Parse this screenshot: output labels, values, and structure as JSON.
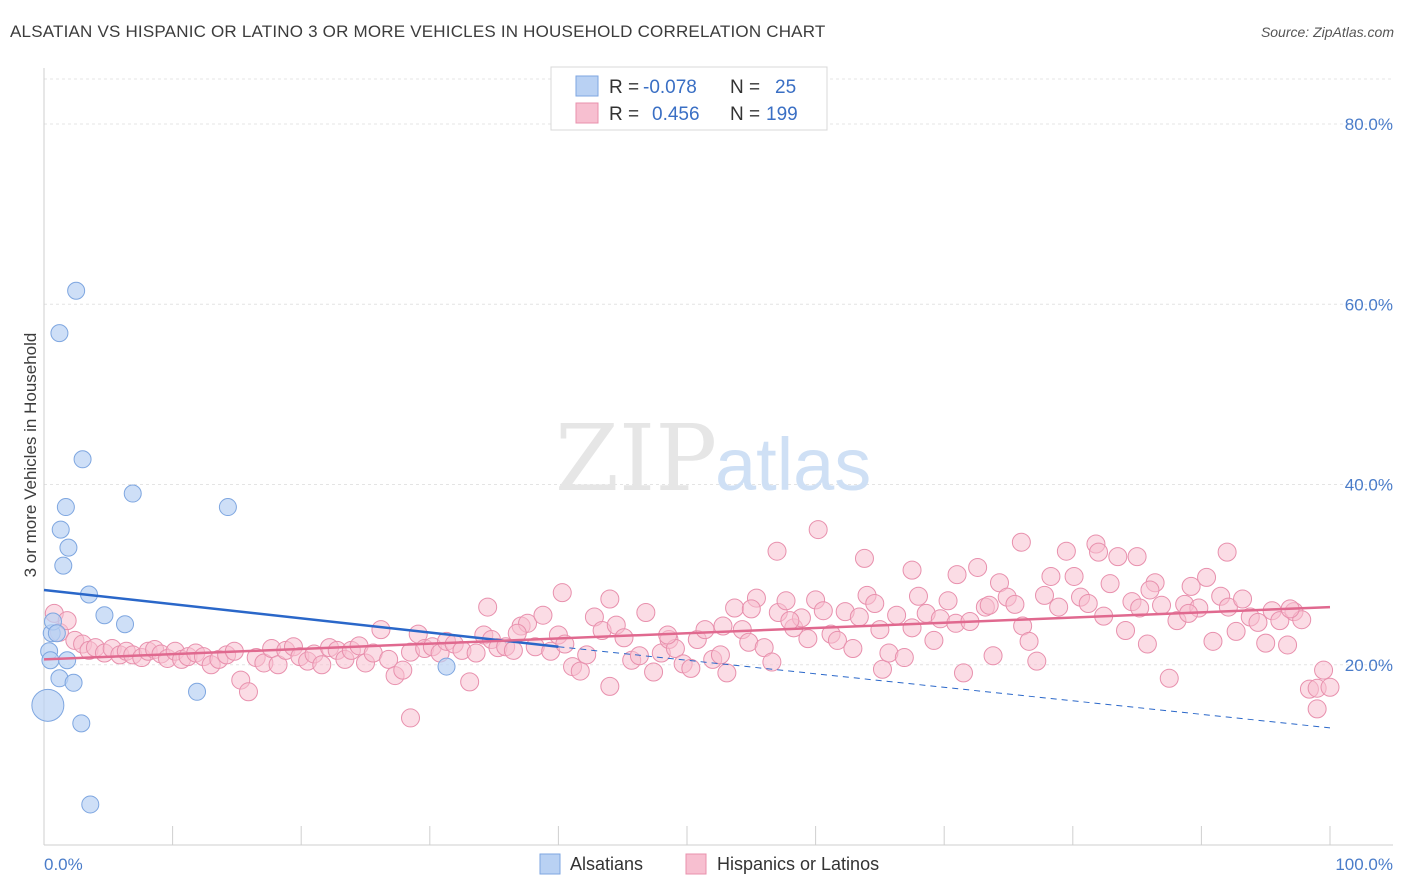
{
  "title": "ALSATIAN VS HISPANIC OR LATINO 3 OR MORE VEHICLES IN HOUSEHOLD CORRELATION CHART",
  "source": "Source: ZipAtlas.com",
  "watermark": {
    "zip": "ZIP",
    "atlas": "atlas"
  },
  "colors": {
    "blue_fill": "#b9d1f3",
    "blue_stroke": "#7ea6e0",
    "blue_line": "#2a67c9",
    "pink_fill": "#f7bfd0",
    "pink_stroke": "#e890ad",
    "pink_line": "#e0698f",
    "axis_text": "#4a7cc9"
  },
  "legend": {
    "r_label": "R =",
    "n_label": "N =",
    "rows": [
      {
        "r": "-0.078",
        "n": "25"
      },
      {
        "r": "0.456",
        "n": "199"
      }
    ]
  },
  "bottom_legend": [
    "Alsatians",
    "Hispanics or Latinos"
  ],
  "chart_data": {
    "type": "scatter",
    "title": "ALSATIAN VS HISPANIC OR LATINO 3 OR MORE VEHICLES IN HOUSEHOLD CORRELATION CHART",
    "xlabel": "",
    "ylabel": "3 or more Vehicles in Household",
    "xlim": [
      0,
      100
    ],
    "ylim": [
      0,
      85
    ],
    "x_tick_labels": [
      "0.0%",
      "100.0%"
    ],
    "y_ticks": [
      20,
      40,
      60,
      80
    ],
    "y_tick_labels": [
      "20.0%",
      "40.0%",
      "60.0%",
      "80.0%"
    ],
    "grid": true,
    "series": [
      {
        "name": "Alsatians",
        "points": [
          [
            0.3,
            15.5
          ],
          [
            0.4,
            21.5
          ],
          [
            0.5,
            20.5
          ],
          [
            0.6,
            23.5
          ],
          [
            0.7,
            24.8
          ],
          [
            1.2,
            56.8
          ],
          [
            1.3,
            35.0
          ],
          [
            1.5,
            31.0
          ],
          [
            1.7,
            37.5
          ],
          [
            1.9,
            33.0
          ],
          [
            1.8,
            20.5
          ],
          [
            1.2,
            18.5
          ],
          [
            2.3,
            18.0
          ],
          [
            2.5,
            61.5
          ],
          [
            2.9,
            13.5
          ],
          [
            3.0,
            42.8
          ],
          [
            3.5,
            27.8
          ],
          [
            3.6,
            4.5
          ],
          [
            4.7,
            25.5
          ],
          [
            6.3,
            24.5
          ],
          [
            6.9,
            39.0
          ],
          [
            11.9,
            17.0
          ],
          [
            14.3,
            37.5
          ],
          [
            31.3,
            19.8
          ],
          [
            1.0,
            23.5
          ]
        ],
        "trend": {
          "x0": 0,
          "y0": 28.3,
          "x1": 40,
          "y1": 22.0,
          "dashed_to_x": 100,
          "dashed_to_y": 13.0
        }
      },
      {
        "name": "Hispanics or Latinos",
        "points": [
          [
            0.8,
            25.7
          ],
          [
            1.2,
            23.6
          ],
          [
            1.8,
            24.9
          ],
          [
            2.4,
            22.7
          ],
          [
            3.0,
            22.3
          ],
          [
            3.5,
            21.6
          ],
          [
            4.0,
            21.9
          ],
          [
            4.7,
            21.3
          ],
          [
            5.3,
            21.8
          ],
          [
            5.9,
            21.1
          ],
          [
            6.4,
            21.5
          ],
          [
            6.9,
            21.1
          ],
          [
            7.6,
            20.8
          ],
          [
            8.1,
            21.5
          ],
          [
            8.6,
            21.7
          ],
          [
            9.1,
            21.2
          ],
          [
            9.6,
            20.7
          ],
          [
            10.2,
            21.5
          ],
          [
            10.7,
            20.6
          ],
          [
            11.2,
            20.9
          ],
          [
            11.8,
            21.3
          ],
          [
            12.4,
            20.9
          ],
          [
            13.0,
            20.0
          ],
          [
            13.6,
            20.6
          ],
          [
            14.2,
            21.1
          ],
          [
            14.8,
            21.5
          ],
          [
            15.3,
            18.3
          ],
          [
            15.9,
            17.0
          ],
          [
            16.5,
            20.8
          ],
          [
            17.1,
            20.2
          ],
          [
            17.7,
            21.8
          ],
          [
            18.2,
            20.0
          ],
          [
            18.8,
            21.6
          ],
          [
            19.4,
            22.0
          ],
          [
            19.9,
            20.9
          ],
          [
            20.5,
            20.4
          ],
          [
            21.0,
            21.2
          ],
          [
            21.6,
            20.0
          ],
          [
            22.2,
            21.9
          ],
          [
            22.8,
            21.6
          ],
          [
            23.4,
            20.6
          ],
          [
            23.9,
            21.6
          ],
          [
            24.5,
            22.1
          ],
          [
            25.0,
            20.2
          ],
          [
            25.6,
            21.3
          ],
          [
            26.2,
            23.9
          ],
          [
            26.8,
            20.6
          ],
          [
            27.3,
            18.8
          ],
          [
            27.9,
            19.4
          ],
          [
            28.5,
            21.4
          ],
          [
            29.1,
            23.4
          ],
          [
            29.6,
            21.8
          ],
          [
            30.2,
            22.0
          ],
          [
            30.8,
            21.3
          ],
          [
            31.3,
            22.6
          ],
          [
            31.9,
            22.3
          ],
          [
            32.5,
            21.6
          ],
          [
            33.1,
            18.1
          ],
          [
            33.6,
            21.3
          ],
          [
            34.2,
            23.3
          ],
          [
            34.8,
            22.8
          ],
          [
            35.3,
            21.9
          ],
          [
            35.9,
            22.0
          ],
          [
            36.5,
            21.6
          ],
          [
            37.1,
            24.3
          ],
          [
            37.6,
            24.6
          ],
          [
            38.2,
            22.0
          ],
          [
            38.8,
            25.5
          ],
          [
            39.4,
            21.5
          ],
          [
            40.0,
            23.3
          ],
          [
            40.5,
            22.3
          ],
          [
            41.1,
            19.8
          ],
          [
            41.7,
            19.3
          ],
          [
            42.2,
            21.1
          ],
          [
            42.8,
            25.3
          ],
          [
            43.4,
            23.8
          ],
          [
            44.0,
            17.6
          ],
          [
            44.5,
            24.4
          ],
          [
            45.1,
            23.0
          ],
          [
            45.7,
            20.5
          ],
          [
            46.3,
            21.0
          ],
          [
            46.8,
            25.8
          ],
          [
            47.4,
            19.2
          ],
          [
            48.0,
            21.3
          ],
          [
            48.6,
            22.8
          ],
          [
            49.1,
            21.8
          ],
          [
            49.7,
            20.1
          ],
          [
            50.3,
            19.6
          ],
          [
            50.8,
            22.8
          ],
          [
            51.4,
            23.9
          ],
          [
            52.0,
            20.6
          ],
          [
            52.6,
            21.1
          ],
          [
            53.1,
            19.1
          ],
          [
            53.7,
            26.3
          ],
          [
            54.3,
            23.9
          ],
          [
            54.8,
            22.5
          ],
          [
            55.4,
            27.4
          ],
          [
            56.0,
            21.9
          ],
          [
            56.6,
            20.3
          ],
          [
            57.1,
            25.8
          ],
          [
            57.7,
            27.1
          ],
          [
            58.3,
            24.1
          ],
          [
            58.9,
            25.2
          ],
          [
            59.4,
            22.9
          ],
          [
            60.0,
            27.2
          ],
          [
            60.6,
            26.0
          ],
          [
            61.2,
            23.4
          ],
          [
            61.7,
            22.7
          ],
          [
            62.3,
            25.9
          ],
          [
            62.9,
            21.8
          ],
          [
            63.4,
            25.3
          ],
          [
            64.0,
            27.7
          ],
          [
            64.6,
            26.8
          ],
          [
            65.2,
            19.5
          ],
          [
            65.7,
            21.3
          ],
          [
            66.3,
            25.5
          ],
          [
            66.9,
            20.8
          ],
          [
            67.5,
            24.1
          ],
          [
            68.0,
            27.6
          ],
          [
            68.6,
            25.7
          ],
          [
            69.2,
            22.7
          ],
          [
            69.7,
            25.1
          ],
          [
            70.3,
            27.1
          ],
          [
            70.9,
            24.6
          ],
          [
            71.5,
            19.1
          ],
          [
            72.0,
            24.8
          ],
          [
            72.6,
            30.8
          ],
          [
            73.2,
            26.4
          ],
          [
            73.8,
            21.0
          ],
          [
            74.3,
            29.1
          ],
          [
            74.9,
            27.5
          ],
          [
            75.5,
            26.7
          ],
          [
            76.1,
            24.3
          ],
          [
            76.6,
            22.6
          ],
          [
            77.2,
            20.4
          ],
          [
            77.8,
            27.7
          ],
          [
            78.3,
            29.8
          ],
          [
            78.9,
            26.4
          ],
          [
            79.5,
            32.6
          ],
          [
            80.1,
            29.8
          ],
          [
            80.6,
            27.5
          ],
          [
            81.2,
            26.8
          ],
          [
            81.8,
            33.4
          ],
          [
            82.4,
            25.4
          ],
          [
            82.9,
            29.0
          ],
          [
            83.5,
            32.0
          ],
          [
            84.1,
            23.8
          ],
          [
            84.6,
            27.0
          ],
          [
            85.2,
            26.3
          ],
          [
            85.8,
            22.3
          ],
          [
            86.4,
            29.1
          ],
          [
            86.9,
            26.6
          ],
          [
            87.5,
            18.5
          ],
          [
            88.1,
            24.9
          ],
          [
            88.7,
            26.7
          ],
          [
            89.2,
            28.7
          ],
          [
            89.8,
            26.3
          ],
          [
            90.4,
            29.7
          ],
          [
            90.9,
            22.6
          ],
          [
            91.5,
            27.6
          ],
          [
            92.1,
            26.4
          ],
          [
            92.7,
            23.7
          ],
          [
            93.2,
            27.3
          ],
          [
            93.8,
            25.3
          ],
          [
            94.4,
            24.7
          ],
          [
            95.0,
            22.4
          ],
          [
            95.5,
            26.0
          ],
          [
            96.1,
            24.9
          ],
          [
            96.7,
            22.2
          ],
          [
            97.2,
            25.9
          ],
          [
            97.8,
            25.0
          ],
          [
            98.4,
            17.3
          ],
          [
            99.0,
            17.4
          ],
          [
            99.5,
            19.4
          ],
          [
            100.0,
            17.5
          ],
          [
            96.9,
            26.2
          ],
          [
            60.2,
            35.0
          ],
          [
            82.0,
            32.5
          ],
          [
            76.0,
            33.6
          ],
          [
            57.0,
            32.6
          ],
          [
            67.5,
            30.5
          ],
          [
            71.0,
            30.0
          ],
          [
            85.0,
            32.0
          ],
          [
            92.0,
            32.5
          ],
          [
            36.8,
            23.5
          ],
          [
            44.0,
            27.3
          ],
          [
            48.5,
            23.3
          ],
          [
            52.8,
            24.3
          ],
          [
            89.0,
            25.7
          ],
          [
            63.8,
            31.8
          ],
          [
            99.0,
            15.1
          ],
          [
            28.5,
            14.1
          ],
          [
            34.5,
            26.4
          ],
          [
            40.3,
            28.0
          ],
          [
            55.0,
            26.2
          ],
          [
            58.0,
            24.9
          ],
          [
            65.0,
            23.9
          ],
          [
            73.5,
            26.6
          ],
          [
            86.0,
            28.3
          ]
        ],
        "trend": {
          "x0": 0,
          "y0": 20.6,
          "x1": 100,
          "y1": 26.4
        }
      }
    ]
  }
}
